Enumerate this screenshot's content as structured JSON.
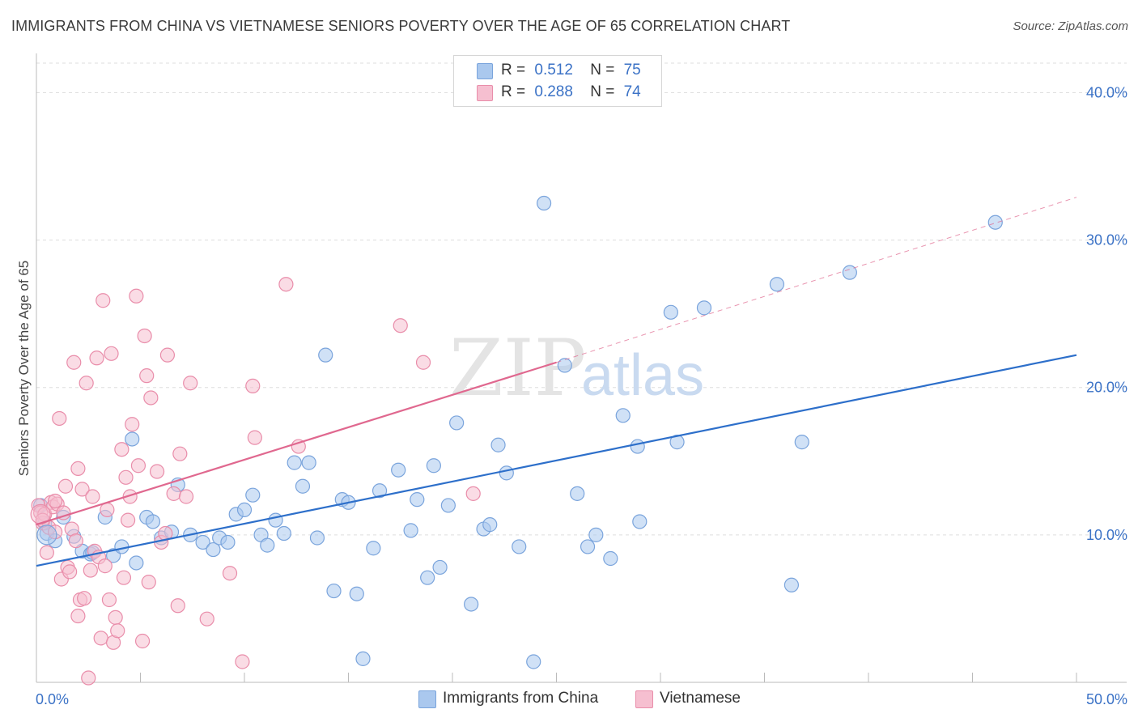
{
  "header": {
    "title": "IMMIGRANTS FROM CHINA VS VIETNAMESE SENIORS POVERTY OVER THE AGE OF 65 CORRELATION CHART",
    "source": "Source: ZipAtlas.com"
  },
  "watermark": {
    "zip": "ZIP",
    "atlas": "atlas"
  },
  "legend_top": {
    "rows": [
      {
        "r_label": "R =",
        "r_value": "0.512",
        "n_label": "N =",
        "n_value": "75"
      },
      {
        "r_label": "R =",
        "r_value": "0.288",
        "n_label": "N =",
        "n_value": "74"
      }
    ]
  },
  "legend_bottom": {
    "items": [
      "Immigrants from China",
      "Vietnamese"
    ]
  },
  "colors": {
    "china_fill": "#aac8ee",
    "china_stroke": "#7aa4dc",
    "china_line": "#2d6fca",
    "viet_fill": "#f6bfd0",
    "viet_stroke": "#e98daa",
    "viet_line": "#e0688f",
    "axis_text": "#3b72c6",
    "grid": "#dddddd"
  },
  "chart_data": {
    "type": "scatter",
    "title": "IMMIGRANTS FROM CHINA VS VIETNAMESE SENIORS POVERTY OVER THE AGE OF 65 CORRELATION CHART",
    "xlabel": "",
    "ylabel": "Seniors Poverty Over the Age of 65",
    "xlim": [
      0,
      50
    ],
    "ylim": [
      0,
      42
    ],
    "x_tick_labels": [
      {
        "value": 0,
        "label": "0.0%"
      },
      {
        "value": 50,
        "label": "50.0%"
      }
    ],
    "y_tick_labels": [
      {
        "value": 10,
        "label": "10.0%"
      },
      {
        "value": 20,
        "label": "20.0%"
      },
      {
        "value": 30,
        "label": "30.0%"
      },
      {
        "value": 40,
        "label": "40.0%"
      }
    ],
    "series": [
      {
        "name": "Immigrants from China",
        "r": 0.512,
        "n": 75,
        "trend": {
          "x": [
            0,
            50
          ],
          "y": [
            7.9,
            22.2
          ],
          "dashed_extension": false
        },
        "points": [
          [
            0.4,
            10.8
          ],
          [
            0.5,
            10.1
          ],
          [
            0.9,
            9.6
          ],
          [
            1.3,
            11.2
          ],
          [
            1.8,
            9.9
          ],
          [
            2.2,
            8.9
          ],
          [
            2.6,
            8.7
          ],
          [
            2.7,
            8.8
          ],
          [
            3.3,
            11.2
          ],
          [
            3.7,
            8.6
          ],
          [
            4.1,
            9.2
          ],
          [
            4.8,
            8.1
          ],
          [
            4.6,
            16.5
          ],
          [
            5.3,
            11.2
          ],
          [
            5.6,
            10.9
          ],
          [
            6.0,
            9.8
          ],
          [
            6.5,
            10.2
          ],
          [
            6.8,
            13.4
          ],
          [
            7.4,
            10.0
          ],
          [
            8.0,
            9.5
          ],
          [
            8.5,
            9.0
          ],
          [
            8.8,
            9.8
          ],
          [
            9.2,
            9.5
          ],
          [
            9.6,
            11.4
          ],
          [
            10.0,
            11.7
          ],
          [
            10.4,
            12.7
          ],
          [
            10.8,
            10.0
          ],
          [
            11.1,
            9.3
          ],
          [
            11.5,
            11.0
          ],
          [
            11.9,
            10.1
          ],
          [
            12.4,
            14.9
          ],
          [
            12.8,
            13.3
          ],
          [
            13.1,
            14.9
          ],
          [
            13.5,
            9.8
          ],
          [
            13.9,
            22.2
          ],
          [
            14.3,
            6.2
          ],
          [
            14.7,
            12.4
          ],
          [
            15.0,
            12.2
          ],
          [
            15.4,
            6.0
          ],
          [
            15.7,
            1.6
          ],
          [
            16.2,
            9.1
          ],
          [
            16.5,
            13.0
          ],
          [
            17.4,
            14.4
          ],
          [
            18.0,
            10.3
          ],
          [
            18.3,
            12.4
          ],
          [
            18.8,
            7.1
          ],
          [
            19.1,
            14.7
          ],
          [
            19.4,
            7.8
          ],
          [
            19.8,
            12.0
          ],
          [
            20.2,
            17.6
          ],
          [
            20.9,
            5.3
          ],
          [
            21.5,
            10.4
          ],
          [
            21.8,
            10.7
          ],
          [
            22.2,
            16.1
          ],
          [
            22.6,
            14.2
          ],
          [
            23.2,
            9.2
          ],
          [
            23.9,
            1.4
          ],
          [
            24.4,
            32.5
          ],
          [
            25.4,
            21.5
          ],
          [
            26.0,
            12.8
          ],
          [
            26.5,
            9.2
          ],
          [
            26.9,
            10.0
          ],
          [
            27.6,
            8.4
          ],
          [
            28.2,
            18.1
          ],
          [
            28.9,
            16.0
          ],
          [
            29.0,
            10.9
          ],
          [
            30.5,
            25.1
          ],
          [
            30.8,
            16.3
          ],
          [
            32.1,
            25.4
          ],
          [
            35.6,
            27.0
          ],
          [
            36.3,
            6.6
          ],
          [
            36.8,
            16.3
          ],
          [
            39.1,
            27.8
          ],
          [
            46.1,
            31.2
          ],
          [
            0.2,
            12.0
          ]
        ]
      },
      {
        "name": "Vietnamese",
        "r": 0.288,
        "n": 74,
        "trend": {
          "x": [
            0,
            25.0
          ],
          "y": [
            10.7,
            21.7
          ],
          "dashed_extension": true,
          "dashed_to": [
            50,
            32.9
          ]
        },
        "points": [
          [
            0.1,
            12.0
          ],
          [
            0.2,
            11.5
          ],
          [
            0.3,
            10.8
          ],
          [
            0.4,
            11.4
          ],
          [
            0.5,
            8.8
          ],
          [
            0.6,
            10.5
          ],
          [
            0.7,
            12.2
          ],
          [
            0.8,
            11.9
          ],
          [
            0.9,
            10.2
          ],
          [
            1.0,
            12.1
          ],
          [
            1.1,
            17.9
          ],
          [
            1.2,
            7.0
          ],
          [
            1.3,
            11.5
          ],
          [
            1.4,
            13.3
          ],
          [
            1.5,
            7.8
          ],
          [
            1.6,
            7.5
          ],
          [
            1.7,
            10.4
          ],
          [
            1.8,
            21.7
          ],
          [
            1.9,
            9.6
          ],
          [
            2.0,
            14.5
          ],
          [
            2.0,
            4.5
          ],
          [
            2.1,
            5.6
          ],
          [
            2.2,
            13.1
          ],
          [
            2.3,
            5.7
          ],
          [
            2.4,
            20.3
          ],
          [
            2.5,
            0.3
          ],
          [
            2.6,
            7.6
          ],
          [
            2.7,
            12.6
          ],
          [
            2.8,
            8.9
          ],
          [
            2.9,
            22.0
          ],
          [
            3.0,
            8.5
          ],
          [
            3.1,
            3.0
          ],
          [
            3.2,
            25.9
          ],
          [
            3.3,
            7.9
          ],
          [
            3.4,
            11.7
          ],
          [
            3.5,
            5.6
          ],
          [
            3.6,
            22.3
          ],
          [
            3.7,
            2.7
          ],
          [
            3.8,
            4.4
          ],
          [
            3.9,
            3.5
          ],
          [
            4.1,
            15.8
          ],
          [
            4.2,
            7.1
          ],
          [
            4.3,
            13.9
          ],
          [
            4.4,
            11.0
          ],
          [
            4.5,
            12.6
          ],
          [
            4.6,
            17.5
          ],
          [
            4.8,
            26.2
          ],
          [
            4.9,
            14.7
          ],
          [
            5.1,
            2.8
          ],
          [
            5.2,
            23.5
          ],
          [
            5.3,
            20.8
          ],
          [
            5.4,
            6.8
          ],
          [
            5.5,
            19.3
          ],
          [
            5.8,
            14.3
          ],
          [
            6.0,
            9.5
          ],
          [
            6.2,
            10.1
          ],
          [
            6.3,
            22.2
          ],
          [
            6.6,
            12.8
          ],
          [
            6.8,
            5.2
          ],
          [
            6.9,
            15.5
          ],
          [
            7.2,
            12.6
          ],
          [
            7.4,
            20.3
          ],
          [
            8.2,
            4.3
          ],
          [
            9.3,
            7.4
          ],
          [
            9.9,
            1.4
          ],
          [
            10.4,
            20.1
          ],
          [
            10.5,
            16.6
          ],
          [
            12.0,
            27.0
          ],
          [
            12.6,
            16.0
          ],
          [
            17.5,
            24.2
          ],
          [
            18.6,
            21.7
          ],
          [
            21.0,
            12.8
          ],
          [
            0.3,
            11.0
          ],
          [
            0.9,
            12.3
          ]
        ]
      }
    ]
  }
}
